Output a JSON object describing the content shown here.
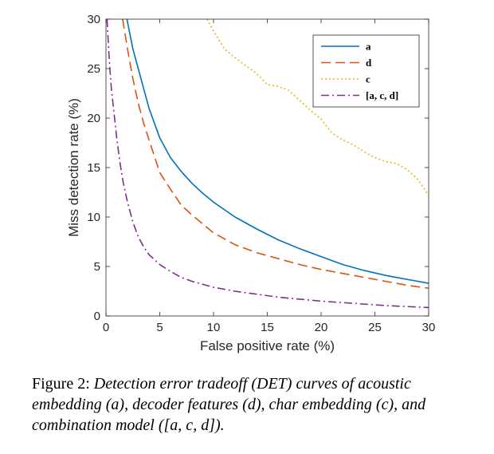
{
  "chart_data": {
    "type": "line",
    "xlabel": "False positive rate (%)",
    "ylabel": "Miss detection rate (%)",
    "xlim": [
      0,
      30
    ],
    "ylim": [
      0,
      30
    ],
    "xticks": [
      "0",
      "5",
      "10",
      "15",
      "20",
      "25",
      "30"
    ],
    "yticks": [
      "0",
      "5",
      "10",
      "15",
      "20",
      "25",
      "30"
    ],
    "grid": false,
    "legend_position": "top-right",
    "series": [
      {
        "name": "a",
        "color": "#0072BD",
        "dash": "solid",
        "x": [
          1.95,
          2.5,
          3.0,
          3.5,
          4.0,
          4.5,
          5.0,
          6.0,
          7.0,
          8.0,
          9.0,
          10.0,
          12.0,
          14.0,
          16.0,
          18.0,
          20.0,
          22.0,
          24.0,
          26.0,
          28.0,
          30.0
        ],
        "y": [
          30.0,
          27.0,
          25.0,
          23.0,
          21.0,
          19.5,
          18.0,
          16.0,
          14.6,
          13.4,
          12.4,
          11.5,
          10.0,
          8.8,
          7.7,
          6.8,
          6.0,
          5.2,
          4.6,
          4.1,
          3.7,
          3.3
        ]
      },
      {
        "name": "d",
        "color": "#D95319",
        "dash": "12,6",
        "x": [
          1.55,
          2.0,
          2.5,
          3.0,
          3.5,
          4.0,
          5.0,
          6.0,
          7.0,
          8.0,
          10.0,
          12.0,
          14.0,
          16.0,
          18.0,
          20.0,
          22.0,
          24.0,
          26.0,
          28.0,
          30.0
        ],
        "y": [
          30.0,
          27.0,
          24.0,
          21.5,
          19.5,
          17.8,
          14.5,
          12.8,
          11.2,
          10.2,
          8.4,
          7.2,
          6.4,
          5.8,
          5.2,
          4.7,
          4.3,
          3.9,
          3.5,
          3.1,
          2.8
        ]
      },
      {
        "name": "c",
        "color": "#EDB120",
        "dash": "2,3",
        "x": [
          9.4,
          10.0,
          11.0,
          12.0,
          13.0,
          14.0,
          15.0,
          16.0,
          17.0,
          18.0,
          19.0,
          20.0,
          21.0,
          22.0,
          23.0,
          24.0,
          25.0,
          26.0,
          27.0,
          28.0,
          29.0,
          30.0
        ],
        "y": [
          30.0,
          28.8,
          27.0,
          26.1,
          25.3,
          24.5,
          23.4,
          23.2,
          22.8,
          21.8,
          20.8,
          19.9,
          18.5,
          17.8,
          17.3,
          16.6,
          16.0,
          15.6,
          15.4,
          14.8,
          13.8,
          12.2
        ]
      },
      {
        "name": "[a, c, d]",
        "color": "#7E2F8E",
        "dash": "10,4,2,4",
        "x": [
          0.1,
          0.3,
          0.5,
          0.8,
          1.0,
          1.3,
          1.6,
          2.0,
          2.5,
          3.0,
          3.5,
          4.0,
          5.0,
          6.0,
          7.0,
          8.0,
          10.0,
          12.0,
          14.0,
          16.0,
          18.0,
          20.0,
          22.0,
          24.0,
          26.0,
          28.0,
          30.0
        ],
        "y": [
          30.0,
          26.0,
          23.0,
          20.0,
          18.0,
          15.5,
          13.5,
          11.5,
          9.5,
          8.0,
          7.0,
          6.2,
          5.2,
          4.5,
          3.9,
          3.5,
          2.9,
          2.5,
          2.2,
          1.9,
          1.7,
          1.5,
          1.35,
          1.2,
          1.05,
          0.95,
          0.85
        ]
      }
    ]
  },
  "legend": {
    "items": [
      "a",
      "d",
      "c",
      "[a, c, d]"
    ]
  },
  "caption": {
    "label": "Figure 2: ",
    "text": "Detection error tradeoff (DET) curves of acoustic embedding (a), decoder features (d), char embedding (c), and combination model ([a, c, d])."
  }
}
